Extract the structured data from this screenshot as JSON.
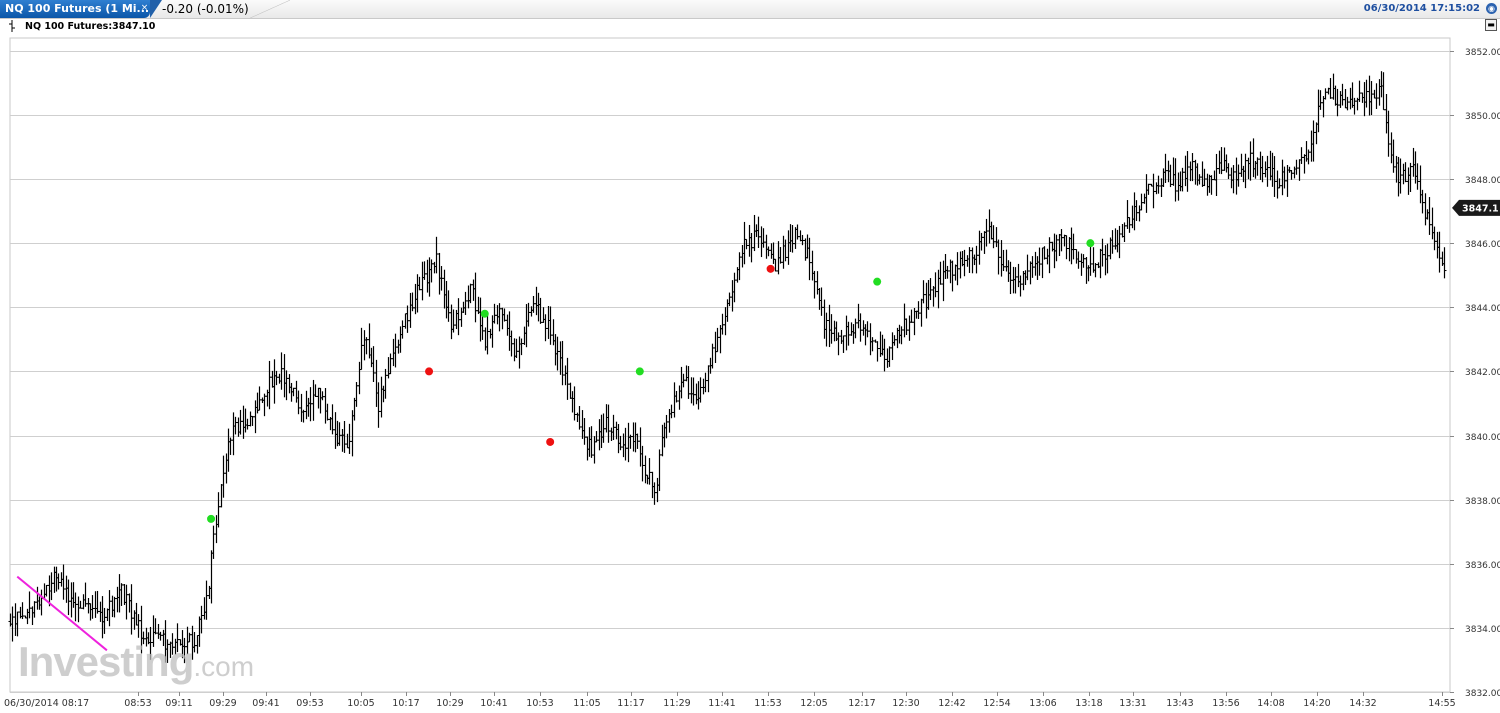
{
  "header": {
    "tab_title": "NQ 100 Futures (1 Mi...",
    "close_glyph": "×",
    "change_text": "-0.20 (-0.01%)",
    "datetime": "06/30/2014 17:15:02",
    "globe_glyph": "◉",
    "legend": "NQ 100 Futures:3847.10",
    "minimize_glyph": "▬"
  },
  "watermark": {
    "main": "Investing",
    "suffix": ".com"
  },
  "chart_data": {
    "type": "ohlc",
    "symbol": "NQ 100 Futures",
    "interval": "1 minute",
    "last_price": 3847.1,
    "last_price_label": "3847.1",
    "ylim": [
      3832,
      3852.4
    ],
    "y_ticks": [
      "3852.00",
      "3850.00",
      "3848.00",
      "3846.00",
      "3844.00",
      "3842.00",
      "3840.00",
      "3838.00",
      "3836.00",
      "3834.00",
      "3832.00"
    ],
    "x_ticks": [
      "06/30/2014 08:17",
      "08:53",
      "09:11",
      "09:29",
      "09:41",
      "09:53",
      "10:05",
      "10:17",
      "10:29",
      "10:41",
      "10:53",
      "11:05",
      "11:17",
      "11:29",
      "11:41",
      "11:53",
      "12:05",
      "12:17",
      "12:30",
      "12:42",
      "12:54",
      "13:06",
      "13:18",
      "13:31",
      "13:43",
      "13:56",
      "14:08",
      "14:20",
      "14:32",
      "14:55"
    ],
    "grid": true,
    "price_path": [
      [
        0,
        3834.2
      ],
      [
        8,
        3834.4
      ],
      [
        18,
        3835.6
      ],
      [
        26,
        3834.8
      ],
      [
        38,
        3834.4
      ],
      [
        46,
        3835.1
      ],
      [
        54,
        3833.9
      ],
      [
        62,
        3833.6
      ],
      [
        70,
        3833.5
      ],
      [
        76,
        3833.6
      ],
      [
        81,
        3834.8
      ],
      [
        84,
        3836.8
      ],
      [
        88,
        3839.0
      ],
      [
        92,
        3840.2
      ],
      [
        100,
        3840.6
      ],
      [
        106,
        3841.5
      ],
      [
        112,
        3842.0
      ],
      [
        120,
        3840.8
      ],
      [
        128,
        3841.3
      ],
      [
        134,
        3840.0
      ],
      [
        140,
        3839.8
      ],
      [
        146,
        3843.2
      ],
      [
        152,
        3841.0
      ],
      [
        160,
        3843.0
      ],
      [
        168,
        3844.5
      ],
      [
        176,
        3845.5
      ],
      [
        182,
        3843.3
      ],
      [
        190,
        3844.6
      ],
      [
        196,
        3843.0
      ],
      [
        202,
        3844.0
      ],
      [
        208,
        3842.4
      ],
      [
        216,
        3844.1
      ],
      [
        222,
        3843.4
      ],
      [
        228,
        3842.0
      ],
      [
        234,
        3840.4
      ],
      [
        240,
        3839.5
      ],
      [
        246,
        3840.5
      ],
      [
        252,
        3839.7
      ],
      [
        258,
        3840.0
      ],
      [
        262,
        3839.0
      ],
      [
        266,
        3838.2
      ],
      [
        270,
        3840.2
      ],
      [
        278,
        3841.8
      ],
      [
        284,
        3841.0
      ],
      [
        290,
        3842.5
      ],
      [
        296,
        3844.0
      ],
      [
        302,
        3845.8
      ],
      [
        308,
        3846.2
      ],
      [
        316,
        3845.3
      ],
      [
        324,
        3846.3
      ],
      [
        330,
        3845.5
      ],
      [
        336,
        3843.5
      ],
      [
        342,
        3843.0
      ],
      [
        350,
        3843.4
      ],
      [
        356,
        3843.0
      ],
      [
        362,
        3842.5
      ],
      [
        368,
        3843.3
      ],
      [
        374,
        3843.9
      ],
      [
        380,
        3844.4
      ],
      [
        386,
        3845.1
      ],
      [
        392,
        3845.4
      ],
      [
        398,
        3845.7
      ],
      [
        404,
        3846.5
      ],
      [
        410,
        3845.3
      ],
      [
        416,
        3844.6
      ],
      [
        422,
        3845.3
      ],
      [
        428,
        3845.8
      ],
      [
        434,
        3846.2
      ],
      [
        440,
        3845.6
      ],
      [
        446,
        3845.3
      ],
      [
        452,
        3845.7
      ],
      [
        458,
        3846.2
      ],
      [
        464,
        3846.9
      ],
      [
        470,
        3847.6
      ],
      [
        476,
        3848.1
      ],
      [
        482,
        3847.8
      ],
      [
        488,
        3848.3
      ],
      [
        494,
        3847.9
      ],
      [
        500,
        3848.5
      ],
      [
        506,
        3848.0
      ],
      [
        512,
        3848.6
      ],
      [
        518,
        3848.3
      ],
      [
        524,
        3847.9
      ],
      [
        530,
        3848.5
      ],
      [
        536,
        3848.8
      ],
      [
        540,
        3850.2
      ],
      [
        544,
        3850.8
      ],
      [
        550,
        3850.3
      ],
      [
        556,
        3850.5
      ],
      [
        562,
        3850.6
      ],
      [
        566,
        3850.7
      ],
      [
        570,
        3848.8
      ],
      [
        574,
        3847.9
      ],
      [
        578,
        3848.4
      ],
      [
        582,
        3847.6
      ],
      [
        586,
        3846.4
      ],
      [
        590,
        3845.6
      ],
      [
        592,
        3845.3
      ]
    ],
    "trend_line": {
      "start": [
        3,
        3835.6
      ],
      "end": [
        40,
        3833.3
      ],
      "color": "#ee22dd"
    },
    "signals": [
      {
        "bar": 83,
        "price": 3837.4,
        "side": "buy",
        "color": "#22dd22"
      },
      {
        "bar": 173,
        "price": 3842.0,
        "side": "sell",
        "color": "#ee1111"
      },
      {
        "bar": 196,
        "price": 3843.8,
        "side": "buy",
        "color": "#22dd22"
      },
      {
        "bar": 223,
        "price": 3839.8,
        "side": "sell",
        "color": "#ee1111"
      },
      {
        "bar": 260,
        "price": 3842.0,
        "side": "buy",
        "color": "#22dd22"
      },
      {
        "bar": 314,
        "price": 3845.2,
        "side": "sell",
        "color": "#ee1111"
      },
      {
        "bar": 358,
        "price": 3844.8,
        "side": "buy",
        "color": "#22dd22"
      },
      {
        "bar": 446,
        "price": 3846.0,
        "side": "buy",
        "color": "#22dd22"
      }
    ],
    "price_flag_color": "#1a1a1a",
    "bar_color": "#000000"
  }
}
